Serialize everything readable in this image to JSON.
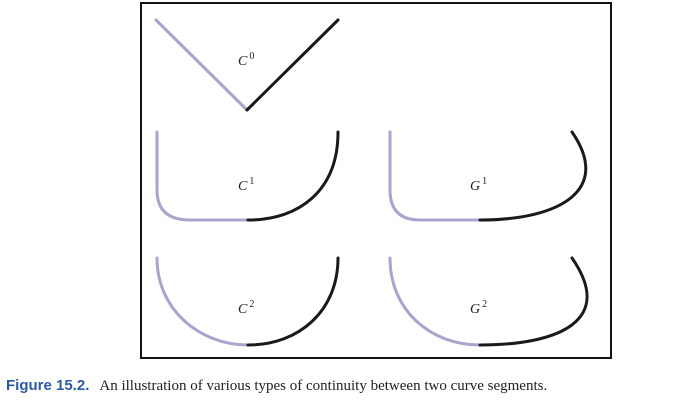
{
  "figure": {
    "panels": [
      {
        "label": "C",
        "superscript": "0"
      },
      {
        "label": "C",
        "superscript": "1"
      },
      {
        "label": "G",
        "superscript": "1"
      },
      {
        "label": "C",
        "superscript": "2"
      },
      {
        "label": "G",
        "superscript": "2"
      }
    ],
    "caption": {
      "label": "Figure 15.2.",
      "text": "An illustration of various types of continuity between two curve segments."
    }
  }
}
